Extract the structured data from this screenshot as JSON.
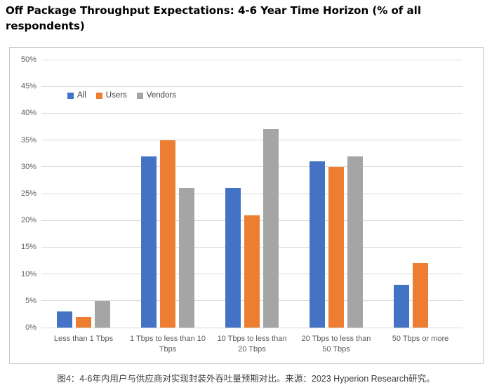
{
  "title": "Off Package Throughput Expectations: 4-6 Year Time Horizon (% of all respondents)",
  "caption": "图4：4-6年内用户与供应商对实现封装外吞吐量预期对比。来源：2023 Hyperion Research研究。",
  "colors": {
    "all": "#4472C4",
    "users": "#ED7D31",
    "vendors": "#A5A5A5",
    "gridline": "#D9D9D9",
    "axis_text": "#595959",
    "chart_border": "#C5C5C5"
  },
  "chart_data": {
    "type": "bar",
    "title": "Off Package Throughput Expectations: 4-6 Year Time Horizon (% of all respondents)",
    "categories": [
      "Less than 1 Tbps",
      "1 Tbps to less than 10 Tbps",
      "10 Tbps to less than 20 Tbps",
      "20 Tbps to less than 50 Tbps",
      "50 Tbps or more"
    ],
    "series": [
      {
        "name": "All",
        "color": "#4472C4",
        "values": [
          3,
          32,
          26,
          31,
          8
        ]
      },
      {
        "name": "Users",
        "color": "#ED7D31",
        "values": [
          2,
          35,
          21,
          30,
          12
        ]
      },
      {
        "name": "Vendors",
        "color": "#A5A5A5",
        "values": [
          5,
          26,
          37,
          32,
          0
        ]
      }
    ],
    "xlabel": "",
    "ylabel": "",
    "ylim": [
      0,
      50
    ],
    "ytick_step": 5,
    "ytick_labels": [
      "0%",
      "5%",
      "10%",
      "15%",
      "20%",
      "25%",
      "30%",
      "35%",
      "40%",
      "45%",
      "50%"
    ],
    "grid": true,
    "legend_position": "inside-top-left"
  }
}
